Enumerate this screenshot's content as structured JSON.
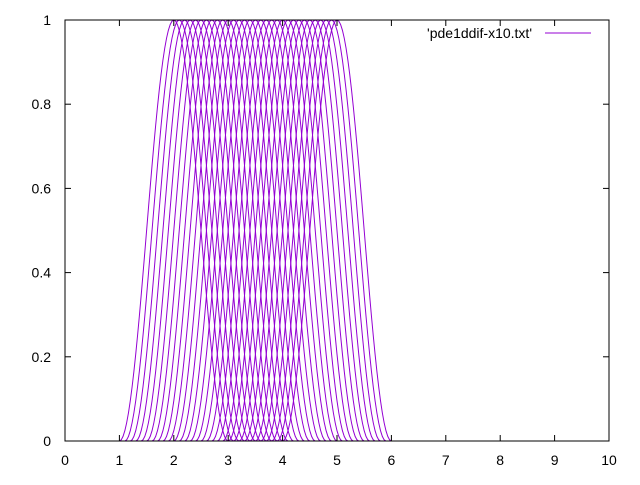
{
  "chart_data": {
    "type": "line",
    "title": "",
    "xlabel": "",
    "ylabel": "",
    "xlim": [
      0,
      10
    ],
    "ylim": [
      0,
      1
    ],
    "x_ticks": [
      0,
      1,
      2,
      3,
      4,
      5,
      6,
      7,
      8,
      9,
      10
    ],
    "y_ticks": [
      0,
      0.2,
      0.4,
      0.6,
      0.8,
      1
    ],
    "x_tick_labels": [
      "0",
      "1",
      "2",
      "3",
      "4",
      "5",
      "6",
      "7",
      "8",
      "9",
      "10"
    ],
    "y_tick_labels": [
      "0",
      "0.2",
      "0.4",
      "0.6",
      "0.8",
      "1"
    ],
    "grid": false,
    "legend": {
      "position": "top-right",
      "entries": [
        "'pde1ddif-x10.txt'"
      ]
    },
    "series_color": "#9400d3",
    "series_name": "'pde1ddif-x10.txt'",
    "curve_profile": "cosine-bump",
    "curve_half_width": 1,
    "curve_center_first": 2,
    "curve_center_last": 5,
    "curve_count": 31
  }
}
